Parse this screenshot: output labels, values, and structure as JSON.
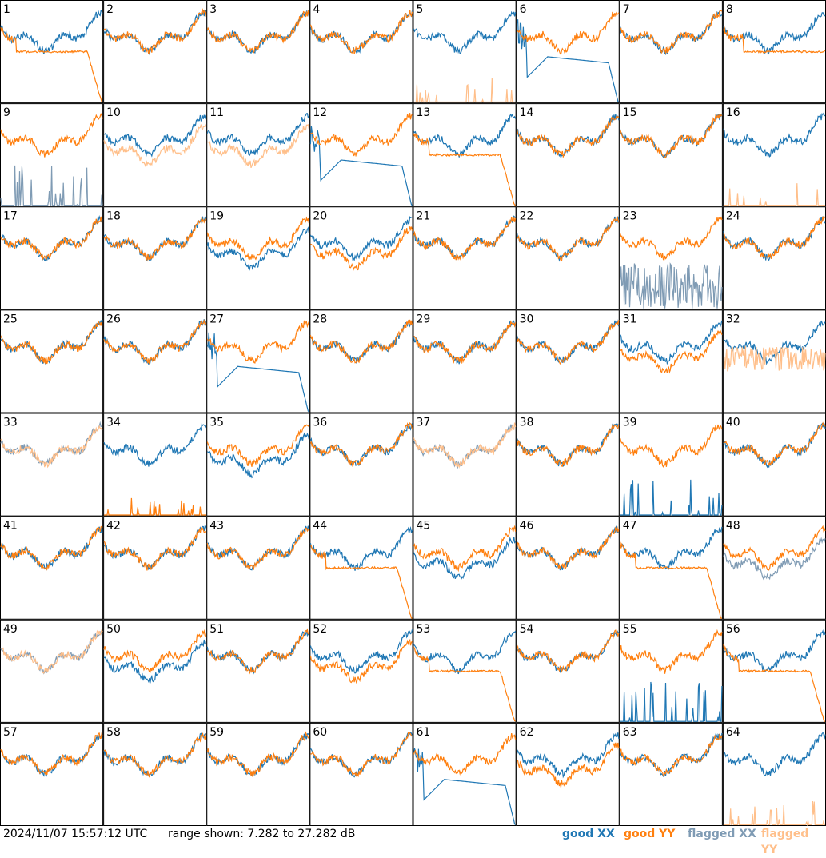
{
  "footer": {
    "timestamp": "2024/11/07 15:57:12 UTC",
    "range_text": "range shown: 7.282 to 27.282 dB"
  },
  "legend": [
    {
      "label": "good XX",
      "color": "#1f77b4"
    },
    {
      "label": "good YY",
      "color": "#ff7f0e"
    },
    {
      "label": "flagged XX",
      "color": "#7f9bb4"
    },
    {
      "label": "flagged YY",
      "color": "#ffbf8a"
    }
  ],
  "chart_data": {
    "type": "line",
    "layout": "8x8 small multiples",
    "y_units": "dB",
    "ylim": [
      7.282,
      27.282
    ],
    "series_names": [
      "good XX",
      "good YY",
      "flagged XX",
      "flagged YY"
    ],
    "panels": [
      {
        "id": 1,
        "xx": "good",
        "yy": "good",
        "pattern": "yy_drop"
      },
      {
        "id": 2,
        "xx": "good",
        "yy": "good",
        "pattern": "normal"
      },
      {
        "id": 3,
        "xx": "good",
        "yy": "good",
        "pattern": "normal"
      },
      {
        "id": 4,
        "xx": "good",
        "yy": "good",
        "pattern": "normal"
      },
      {
        "id": 5,
        "xx": "good",
        "yy": "flagged",
        "pattern": "yy_low_spikes"
      },
      {
        "id": 6,
        "xx": "good",
        "yy": "good",
        "pattern": "xx_drop"
      },
      {
        "id": 7,
        "xx": "good",
        "yy": "good",
        "pattern": "normal"
      },
      {
        "id": 8,
        "xx": "good",
        "yy": "good",
        "pattern": "yy_flat"
      },
      {
        "id": 9,
        "xx": "flagged",
        "yy": "good",
        "pattern": "xx_low_spikes"
      },
      {
        "id": 10,
        "xx": "good",
        "yy": "flagged",
        "pattern": "yy_below"
      },
      {
        "id": 11,
        "xx": "good",
        "yy": "flagged",
        "pattern": "yy_below"
      },
      {
        "id": 12,
        "xx": "good",
        "yy": "good",
        "pattern": "xx_drop"
      },
      {
        "id": 13,
        "xx": "good",
        "yy": "good",
        "pattern": "yy_drop"
      },
      {
        "id": 14,
        "xx": "good",
        "yy": "good",
        "pattern": "normal"
      },
      {
        "id": 15,
        "xx": "good",
        "yy": "good",
        "pattern": "normal"
      },
      {
        "id": 16,
        "xx": "good",
        "yy": "flagged",
        "pattern": "yy_low_spikes"
      },
      {
        "id": 17,
        "xx": "good",
        "yy": "good",
        "pattern": "normal"
      },
      {
        "id": 18,
        "xx": "good",
        "yy": "good",
        "pattern": "normal"
      },
      {
        "id": 19,
        "xx": "good",
        "yy": "good",
        "pattern": "xx_below"
      },
      {
        "id": 20,
        "xx": "good",
        "yy": "good",
        "pattern": "yy_below"
      },
      {
        "id": 21,
        "xx": "good",
        "yy": "good",
        "pattern": "normal"
      },
      {
        "id": 22,
        "xx": "good",
        "yy": "good",
        "pattern": "normal"
      },
      {
        "id": 23,
        "xx": "flagged",
        "yy": "good",
        "pattern": "xx_noisy"
      },
      {
        "id": 24,
        "xx": "good",
        "yy": "good",
        "pattern": "normal"
      },
      {
        "id": 25,
        "xx": "good",
        "yy": "good",
        "pattern": "normal"
      },
      {
        "id": 26,
        "xx": "good",
        "yy": "good",
        "pattern": "normal"
      },
      {
        "id": 27,
        "xx": "good",
        "yy": "good",
        "pattern": "xx_drop"
      },
      {
        "id": 28,
        "xx": "good",
        "yy": "good",
        "pattern": "normal"
      },
      {
        "id": 29,
        "xx": "good",
        "yy": "good",
        "pattern": "normal"
      },
      {
        "id": 30,
        "xx": "good",
        "yy": "good",
        "pattern": "normal"
      },
      {
        "id": 31,
        "xx": "good",
        "yy": "good",
        "pattern": "yy_below"
      },
      {
        "id": 32,
        "xx": "good",
        "yy": "flagged",
        "pattern": "yy_flagged_only"
      },
      {
        "id": 33,
        "xx": "flagged",
        "yy": "flagged",
        "pattern": "both_flagged"
      },
      {
        "id": 34,
        "xx": "good",
        "yy": "good",
        "pattern": "yy_low_spikes"
      },
      {
        "id": 35,
        "xx": "good",
        "yy": "good",
        "pattern": "xx_below"
      },
      {
        "id": 36,
        "xx": "good",
        "yy": "good",
        "pattern": "normal"
      },
      {
        "id": 37,
        "xx": "flagged",
        "yy": "flagged",
        "pattern": "both_flagged"
      },
      {
        "id": 38,
        "xx": "good",
        "yy": "good",
        "pattern": "normal"
      },
      {
        "id": 39,
        "xx": "good",
        "yy": "good",
        "pattern": "xx_low_spikes"
      },
      {
        "id": 40,
        "xx": "good",
        "yy": "good",
        "pattern": "normal"
      },
      {
        "id": 41,
        "xx": "good",
        "yy": "good",
        "pattern": "normal"
      },
      {
        "id": 42,
        "xx": "good",
        "yy": "good",
        "pattern": "normal"
      },
      {
        "id": 43,
        "xx": "good",
        "yy": "good",
        "pattern": "normal"
      },
      {
        "id": 44,
        "xx": "good",
        "yy": "good",
        "pattern": "yy_drop"
      },
      {
        "id": 45,
        "xx": "good",
        "yy": "good",
        "pattern": "xx_below"
      },
      {
        "id": 46,
        "xx": "good",
        "yy": "good",
        "pattern": "normal"
      },
      {
        "id": 47,
        "xx": "good",
        "yy": "good",
        "pattern": "yy_drop"
      },
      {
        "id": 48,
        "xx": "flagged",
        "yy": "good",
        "pattern": "xx_below"
      },
      {
        "id": 49,
        "xx": "flagged",
        "yy": "flagged",
        "pattern": "both_flagged"
      },
      {
        "id": 50,
        "xx": "good",
        "yy": "good",
        "pattern": "xx_below"
      },
      {
        "id": 51,
        "xx": "good",
        "yy": "good",
        "pattern": "normal"
      },
      {
        "id": 52,
        "xx": "good",
        "yy": "good",
        "pattern": "yy_below"
      },
      {
        "id": 53,
        "xx": "good",
        "yy": "good",
        "pattern": "yy_drop"
      },
      {
        "id": 54,
        "xx": "good",
        "yy": "good",
        "pattern": "normal"
      },
      {
        "id": 55,
        "xx": "good",
        "yy": "good",
        "pattern": "xx_low_spikes"
      },
      {
        "id": 56,
        "xx": "good",
        "yy": "good",
        "pattern": "yy_drop"
      },
      {
        "id": 57,
        "xx": "good",
        "yy": "good",
        "pattern": "normal"
      },
      {
        "id": 58,
        "xx": "good",
        "yy": "good",
        "pattern": "normal"
      },
      {
        "id": 59,
        "xx": "good",
        "yy": "good",
        "pattern": "normal"
      },
      {
        "id": 60,
        "xx": "good",
        "yy": "good",
        "pattern": "normal"
      },
      {
        "id": 61,
        "xx": "good",
        "yy": "good",
        "pattern": "xx_drop"
      },
      {
        "id": 62,
        "xx": "good",
        "yy": "good",
        "pattern": "yy_below"
      },
      {
        "id": 63,
        "xx": "good",
        "yy": "good",
        "pattern": "normal"
      },
      {
        "id": 64,
        "xx": "good",
        "yy": "flagged",
        "pattern": "yy_low_spikes"
      }
    ]
  }
}
